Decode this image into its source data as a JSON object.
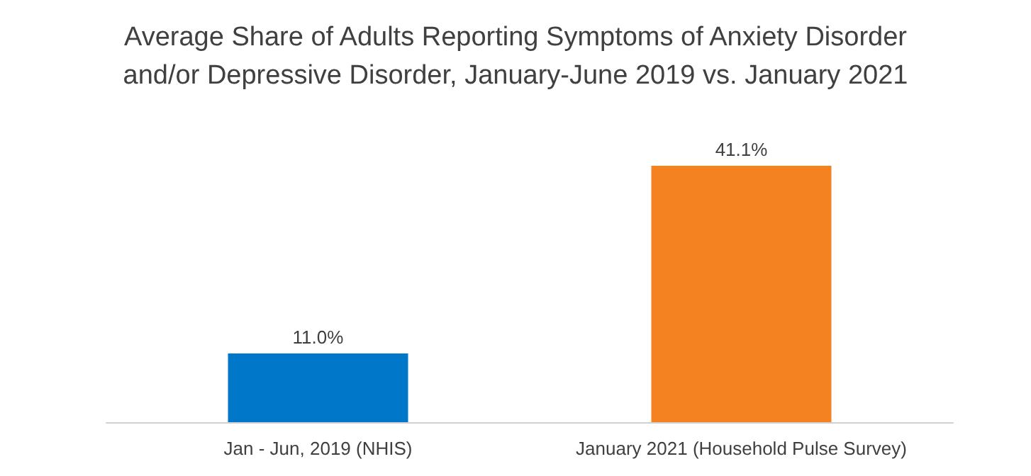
{
  "chart_data": {
    "type": "bar",
    "title": "Average Share of Adults Reporting Symptoms of Anxiety Disorder\nand/or Depressive Disorder, January-June 2019 vs. January 2021",
    "categories": [
      "Jan - Jun, 2019 (NHIS)",
      "January 2021 (Household Pulse Survey)"
    ],
    "values": [
      11.0,
      41.1
    ],
    "colors": [
      "#0077c8",
      "#f58220"
    ],
    "value_labels": [
      "11.0%",
      "41.1%"
    ]
  }
}
